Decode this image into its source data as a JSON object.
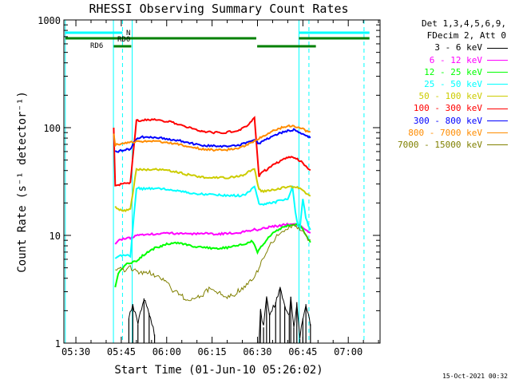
{
  "chart_data": {
    "type": "line",
    "title": "RHESSI Observing Summary Count Rates",
    "xlabel": "Start Time (01-Jun-10 05:26:02)",
    "ylabel": "Count Rate (s⁻¹ detector⁻¹)",
    "y_scale": "log",
    "ylim": [
      1,
      1000
    ],
    "y_ticks": [
      "1",
      "10",
      "100",
      "1000"
    ],
    "xlim_minutes": [
      26.03,
      130.5
    ],
    "x_ticks": [
      {
        "label": "05:30",
        "minute": 30
      },
      {
        "label": "05:45",
        "minute": 45
      },
      {
        "label": "06:00",
        "minute": 60
      },
      {
        "label": "06:15",
        "minute": 75
      },
      {
        "label": "06:30",
        "minute": 90
      },
      {
        "label": "06:45",
        "minute": 105
      },
      {
        "label": "07:00",
        "minute": 120
      }
    ],
    "legend_header": [
      "Det 1,3,4,5,6,9,",
      "FDecim 2, Att 0"
    ],
    "series": [
      {
        "name": "3 - 6 keV",
        "color": "#000000",
        "x": [
          47.5,
          48.8,
          50.5,
          52.5,
          54.2,
          56.0,
          58.0,
          60.0,
          63.0,
          66.0,
          70.0,
          74.0,
          78.0,
          82.0,
          86.0,
          88.4,
          89.0,
          90.5,
          91.0,
          92.0,
          93.0,
          94.0,
          96.0,
          97.5,
          99.0,
          100.5,
          101.0,
          102.0,
          103.0,
          104.0,
          105.0,
          106.0,
          107.5
        ],
        "y": [
          1.7,
          2.3,
          1.5,
          2.6,
          1.9,
          1.2,
          null,
          null,
          null,
          null,
          null,
          null,
          null,
          null,
          null,
          null,
          null,
          1.05,
          2.0,
          1.4,
          2.6,
          1.8,
          2.4,
          3.3,
          2.2,
          1.8,
          2.7,
          1.4,
          2.4,
          1.1,
          1.7,
          2.3,
          1.5
        ]
      },
      {
        "name": "6 - 12 keV",
        "color": "#ff00ff",
        "x": [
          43.0,
          44.0,
          46.0,
          48.0,
          50.0,
          52.0,
          56.0,
          60.0,
          64.0,
          68.0,
          72.0,
          76.0,
          80.0,
          84.0,
          86.0,
          88.0,
          89.0,
          90.0,
          91.0,
          93.0,
          95.0,
          97.0,
          99.0,
          101.0,
          103.0,
          104.0,
          105.0,
          106.0,
          107.5
        ],
        "y": [
          8.3,
          8.9,
          9.4,
          9.5,
          9.9,
          10.2,
          10.3,
          10.5,
          10.4,
          10.3,
          10.5,
          10.3,
          10.4,
          10.6,
          10.9,
          11.2,
          11.3,
          11.0,
          11.5,
          11.8,
          12.2,
          12.2,
          12.6,
          12.9,
          12.6,
          12.4,
          11.8,
          11.3,
          10.5
        ]
      },
      {
        "name": "12 - 25 keV",
        "color": "#00ff00",
        "x": [
          43.0,
          44.0,
          46.0,
          48.0,
          50.0,
          52.0,
          54.0,
          56.0,
          58.0,
          60.0,
          62.0,
          65.0,
          68.0,
          72.0,
          76.0,
          80.0,
          84.0,
          86.0,
          88.0,
          89.0,
          90.0,
          92.0,
          94.0,
          96.0,
          98.0,
          100.0,
          102.0,
          104.0,
          105.0,
          106.0,
          107.5
        ],
        "y": [
          3.3,
          4.4,
          5.3,
          5.6,
          5.7,
          6.5,
          7.1,
          7.6,
          7.9,
          8.3,
          8.5,
          8.4,
          8.0,
          7.7,
          7.6,
          7.7,
          8.1,
          8.4,
          8.9,
          8.3,
          7.0,
          8.4,
          9.8,
          11.0,
          11.7,
          12.3,
          12.7,
          12.4,
          11.5,
          10.1,
          8.5
        ]
      },
      {
        "name": "25 - 50 keV",
        "color": "#00ffff",
        "x": [
          43.0,
          44.0,
          46.0,
          48.0,
          50.0,
          52.0,
          56.0,
          60.0,
          64.0,
          68.0,
          72.0,
          76.0,
          80.0,
          84.0,
          86.0,
          88.0,
          89.0,
          90.5,
          92.0,
          94.0,
          96.0,
          98.0,
          100.0,
          101.5,
          102.5,
          103.5,
          104.0,
          105.0,
          106.0,
          107.5
        ],
        "y": [
          6.1,
          6.4,
          6.6,
          6.4,
          27.5,
          27.1,
          27.4,
          26.9,
          25.9,
          24.7,
          24.1,
          23.8,
          23.4,
          23.4,
          24.0,
          26.5,
          28.5,
          19.5,
          19.4,
          19.9,
          20.4,
          21.5,
          21.5,
          28.5,
          16.5,
          11.8,
          11.5,
          22.0,
          14.2,
          11.2
        ]
      },
      {
        "name": "50 - 100 keV",
        "color": "#cccc00",
        "x": [
          43.0,
          44.0,
          46.0,
          48.0,
          50.0,
          52.0,
          56.0,
          60.0,
          64.0,
          68.0,
          72.0,
          76.0,
          80.0,
          84.0,
          86.0,
          88.0,
          89.0,
          90.5,
          92.0,
          94.0,
          96.0,
          98.0,
          100.0,
          102.0,
          104.0,
          105.0,
          106.0,
          107.5
        ],
        "y": [
          18.6,
          17.3,
          17.0,
          17.6,
          41.0,
          40.8,
          40.9,
          40.1,
          38.5,
          36.0,
          34.7,
          34.4,
          34.3,
          35.2,
          37.2,
          40.2,
          42.1,
          26.5,
          25.6,
          26.3,
          26.9,
          27.5,
          28.0,
          28.1,
          27.5,
          26.1,
          24.8,
          23.4
        ]
      },
      {
        "name": "100 - 300 keV",
        "color": "#ff0000",
        "x": [
          42.5,
          43.0,
          44.0,
          46.0,
          48.0,
          50.0,
          52.0,
          56.0,
          60.0,
          64.0,
          68.0,
          72.0,
          76.0,
          80.0,
          84.0,
          86.0,
          88.0,
          89.0,
          90.5,
          92.0,
          94.0,
          96.0,
          98.0,
          100.0,
          102.0,
          104.0,
          105.0,
          106.0,
          107.5
        ],
        "y": [
          100.0,
          28.8,
          29.5,
          30.5,
          31.0,
          116.0,
          117.5,
          118.7,
          114.8,
          108.0,
          98.5,
          92.7,
          90.0,
          90.4,
          95.9,
          101.5,
          115.0,
          126.0,
          35.5,
          39.4,
          42.4,
          46.5,
          50.1,
          52.8,
          53.5,
          49.0,
          47.0,
          43.8,
          40.0
        ]
      },
      {
        "name": "300 - 800 keV",
        "color": "#0000ff",
        "x": [
          43.0,
          44.0,
          46.0,
          48.0,
          50.0,
          52.0,
          56.0,
          60.0,
          64.0,
          68.0,
          72.0,
          76.0,
          80.0,
          84.0,
          86.0,
          88.0,
          89.0,
          90.5,
          92.0,
          94.0,
          96.0,
          98.0,
          100.0,
          102.0,
          104.0,
          105.0,
          106.0,
          107.5
        ],
        "y": [
          61.0,
          60.0,
          62.5,
          63.5,
          79.0,
          81.8,
          80.7,
          79.2,
          76.0,
          71.6,
          68.5,
          67.3,
          67.2,
          68.8,
          72.5,
          76.5,
          78.5,
          71.0,
          75.0,
          80.6,
          86.0,
          90.0,
          94.0,
          95.6,
          91.0,
          88.0,
          84.3,
          80.0
        ]
      },
      {
        "name": "800 - 7000 keV",
        "color": "#ff8c00",
        "x": [
          42.5,
          43.0,
          44.0,
          46.0,
          48.0,
          50.0,
          52.0,
          56.0,
          60.0,
          64.0,
          68.0,
          72.0,
          76.0,
          80.0,
          84.0,
          86.0,
          88.0,
          89.0,
          90.5,
          92.0,
          94.0,
          96.0,
          98.0,
          100.0,
          102.0,
          104.0,
          105.0,
          106.0,
          107.5
        ],
        "y": [
          88.0,
          69.0,
          70.0,
          72.0,
          73.5,
          74.0,
          75.0,
          74.5,
          73.0,
          70.0,
          66.0,
          63.0,
          62.0,
          62.5,
          64.5,
          68.0,
          73.0,
          76.0,
          80.0,
          84.0,
          90.0,
          96.0,
          100.0,
          103.5,
          104.0,
          100.0,
          97.0,
          93.0,
          90.0
        ]
      },
      {
        "name": "7000 - 15000 keV",
        "color": "#808000",
        "x": [
          43.0,
          44.0,
          46.0,
          48.0,
          50.0,
          52.0,
          54.0,
          56.0,
          58.0,
          60.0,
          62.0,
          64.0,
          66.0,
          68.0,
          70.0,
          72.0,
          74.0,
          76.0,
          78.0,
          80.0,
          82.0,
          84.0,
          86.0,
          88.0,
          89.0,
          90.5,
          92.0,
          94.0,
          96.0,
          98.0,
          100.0,
          102.0,
          104.0,
          105.0,
          106.0,
          107.5
        ],
        "y": [
          4.8,
          5.1,
          4.7,
          5.0,
          4.6,
          4.5,
          4.6,
          4.2,
          4.0,
          3.7,
          3.1,
          2.9,
          2.6,
          2.5,
          2.7,
          2.8,
          3.2,
          3.1,
          2.9,
          2.7,
          2.8,
          3.1,
          3.4,
          3.8,
          4.2,
          5.0,
          6.3,
          7.9,
          9.6,
          11.0,
          11.8,
          12.2,
          11.7,
          10.7,
          9.8,
          8.8
        ]
      }
    ],
    "annotations": [
      {
        "text": "N",
        "color": "#00ffff"
      },
      {
        "text": "RD0",
        "color": "#008000"
      },
      {
        "text": "RD6",
        "color": "#008000"
      }
    ],
    "markers": {
      "solid_lines_minutes": [
        26.5,
        42.4,
        48.6,
        103.7
      ],
      "dashed_lines_minutes": [
        45.4,
        107.0,
        125.2
      ],
      "night_segments": [
        [
          26.5,
          45.4
        ],
        [
          103.7,
          127.0
        ]
      ],
      "rd0_segments": [
        [
          26.5,
          89.6
        ],
        [
          103.7,
          127.0
        ]
      ],
      "rd6_segments": [
        [
          42.5,
          48.3
        ],
        [
          89.9,
          109.3
        ]
      ]
    }
  },
  "timestamp": "15-Oct-2021 00:32"
}
